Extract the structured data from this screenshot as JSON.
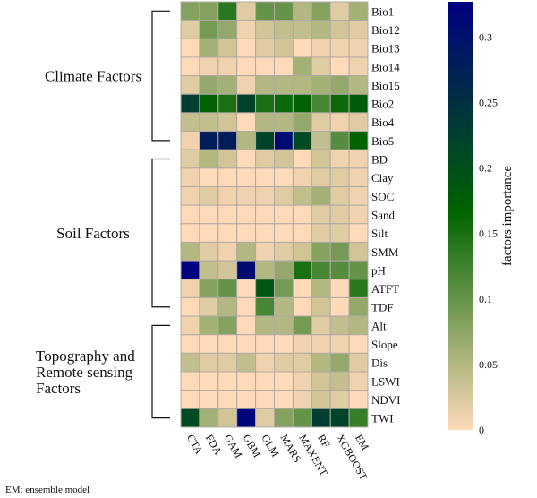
{
  "chart_data": {
    "type": "heatmap",
    "columns": [
      "CTA",
      "FDA",
      "GAM",
      "GBM",
      "GLM",
      "MARS",
      "MAXENT",
      "RF",
      "XGBOOST",
      "EM"
    ],
    "rows": [
      "Bio1",
      "Bio12",
      "Bio13",
      "Bio14",
      "Bio15",
      "Bio2",
      "Bio4",
      "Bio5",
      "BD",
      "Clay",
      "SOC",
      "Sand",
      "Silt",
      "SMM",
      "pH",
      "ATFT",
      "TDF",
      "Alt",
      "Slope",
      "Dis",
      "LSWI",
      "NDVI",
      "TWI"
    ],
    "values": [
      [
        0.08,
        0.08,
        0.14,
        0.02,
        0.1,
        0.1,
        0.05,
        0.08,
        0.02,
        0.06
      ],
      [
        0.02,
        0.09,
        0.07,
        0.01,
        0.03,
        0.04,
        0.04,
        0.05,
        0.03,
        0.02
      ],
      [
        0.0,
        0.06,
        0.03,
        0.0,
        0.02,
        0.03,
        0.0,
        0.01,
        0.01,
        0.01
      ],
      [
        0.0,
        0.01,
        0.01,
        0.0,
        0.0,
        0.0,
        0.06,
        0.02,
        0.0,
        0.01
      ],
      [
        0.02,
        0.07,
        0.06,
        0.01,
        0.05,
        0.05,
        0.05,
        0.06,
        0.07,
        0.05
      ],
      [
        0.23,
        0.17,
        0.15,
        0.22,
        0.15,
        0.16,
        0.17,
        0.12,
        0.16,
        0.18
      ],
      [
        0.04,
        0.04,
        0.03,
        0.0,
        0.05,
        0.05,
        0.07,
        0.02,
        0.01,
        0.02
      ],
      [
        0.01,
        0.28,
        0.28,
        0.05,
        0.22,
        0.31,
        0.21,
        0.04,
        0.11,
        0.17
      ],
      [
        0.02,
        0.05,
        0.03,
        0.0,
        0.02,
        0.03,
        0.0,
        0.03,
        0.01,
        0.01
      ],
      [
        0.01,
        0.0,
        0.0,
        0.0,
        0.0,
        0.0,
        0.01,
        0.02,
        0.02,
        0.01
      ],
      [
        0.01,
        0.02,
        0.01,
        0.01,
        0.01,
        0.02,
        0.04,
        0.06,
        0.02,
        0.01
      ],
      [
        0.0,
        0.0,
        0.0,
        0.0,
        0.0,
        0.0,
        0.0,
        0.02,
        0.02,
        0.01
      ],
      [
        0.0,
        0.0,
        0.0,
        0.0,
        0.0,
        0.0,
        0.0,
        0.02,
        0.02,
        0.0
      ],
      [
        0.05,
        0.02,
        0.01,
        0.05,
        0.01,
        0.02,
        0.03,
        0.08,
        0.09,
        0.03
      ],
      [
        0.33,
        0.04,
        0.03,
        0.31,
        0.05,
        0.07,
        0.15,
        0.12,
        0.11,
        0.1
      ],
      [
        0.01,
        0.08,
        0.1,
        0.0,
        0.19,
        0.09,
        0.0,
        0.05,
        0.0,
        0.14
      ],
      [
        0.0,
        0.02,
        0.05,
        0.0,
        0.12,
        0.05,
        0.0,
        0.03,
        0.0,
        0.07
      ],
      [
        0.01,
        0.06,
        0.08,
        0.0,
        0.05,
        0.05,
        0.09,
        0.02,
        0.04,
        0.05
      ],
      [
        0.0,
        0.0,
        0.0,
        0.0,
        0.0,
        0.0,
        0.01,
        0.01,
        0.01,
        0.0
      ],
      [
        0.04,
        0.02,
        0.02,
        0.04,
        0.01,
        0.02,
        0.02,
        0.05,
        0.07,
        0.02
      ],
      [
        0.0,
        0.0,
        0.0,
        0.0,
        0.0,
        0.0,
        0.01,
        0.03,
        0.04,
        0.01
      ],
      [
        0.0,
        0.0,
        0.0,
        0.0,
        0.0,
        0.0,
        0.01,
        0.03,
        0.02,
        0.0
      ],
      [
        0.21,
        0.06,
        0.03,
        0.32,
        0.02,
        0.08,
        0.1,
        0.23,
        0.22,
        0.13
      ]
    ],
    "colorbar": {
      "label": "factors importance",
      "ticks": [
        0,
        0.05,
        0.1,
        0.15,
        0.2,
        0.25,
        0.3
      ],
      "tick_labels": [
        "0",
        "0.05",
        "0.1",
        "0.15",
        "0.2",
        "0.25",
        "0.3"
      ],
      "range": [
        0,
        0.327
      ],
      "colors": [
        "#FFDAB9",
        "#006400",
        "#000080"
      ]
    },
    "groups": [
      {
        "label_lines": [
          "Climate Factors"
        ],
        "from": "Bio1",
        "to": "Bio5"
      },
      {
        "label_lines": [
          "Soil Factors"
        ],
        "from": "BD",
        "to": "TDF"
      },
      {
        "label_lines": [
          "Topography and",
          "Remote sensing",
          "Factors"
        ],
        "from": "Alt",
        "to": "TWI"
      }
    ]
  },
  "footnote": "EM: ensemble model"
}
